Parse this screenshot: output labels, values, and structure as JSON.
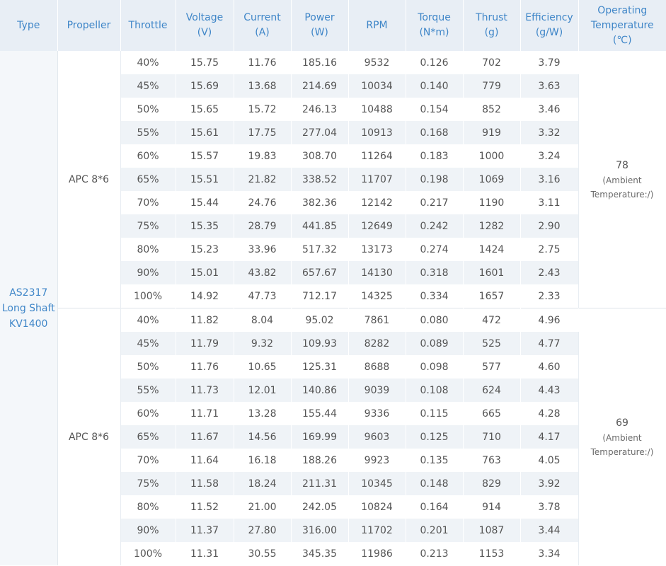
{
  "headers": [
    [
      "Type"
    ],
    [
      "Propeller"
    ],
    [
      "Throttle"
    ],
    [
      "Voltage",
      "(V)"
    ],
    [
      "Current",
      "(A)"
    ],
    [
      "Power",
      "(W)"
    ],
    [
      "RPM"
    ],
    [
      "Torque",
      "(N*m)"
    ],
    [
      "Thrust",
      "(g)"
    ],
    [
      "Efficiency",
      "(g/W)"
    ],
    [
      "Operating",
      "Temperature",
      "(℃)"
    ]
  ],
  "type_lines": [
    "AS2317",
    "Long Shaft",
    "KV1400"
  ],
  "groups": [
    {
      "propeller": "APC 8*6",
      "temperature": "78",
      "temperature_note_lines": [
        "(Ambient",
        "Temperature:/)"
      ],
      "rows": [
        [
          "40%",
          "15.75",
          "11.76",
          "185.16",
          "9532",
          "0.126",
          "702",
          "3.79"
        ],
        [
          "45%",
          "15.69",
          "13.68",
          "214.69",
          "10034",
          "0.140",
          "779",
          "3.63"
        ],
        [
          "50%",
          "15.65",
          "15.72",
          "246.13",
          "10488",
          "0.154",
          "852",
          "3.46"
        ],
        [
          "55%",
          "15.61",
          "17.75",
          "277.04",
          "10913",
          "0.168",
          "919",
          "3.32"
        ],
        [
          "60%",
          "15.57",
          "19.83",
          "308.70",
          "11264",
          "0.183",
          "1000",
          "3.24"
        ],
        [
          "65%",
          "15.51",
          "21.82",
          "338.52",
          "11707",
          "0.198",
          "1069",
          "3.16"
        ],
        [
          "70%",
          "15.44",
          "24.76",
          "382.36",
          "12142",
          "0.217",
          "1190",
          "3.11"
        ],
        [
          "75%",
          "15.35",
          "28.79",
          "441.85",
          "12649",
          "0.242",
          "1282",
          "2.90"
        ],
        [
          "80%",
          "15.23",
          "33.96",
          "517.32",
          "13173",
          "0.274",
          "1424",
          "2.75"
        ],
        [
          "90%",
          "15.01",
          "43.82",
          "657.67",
          "14130",
          "0.318",
          "1601",
          "2.43"
        ],
        [
          "100%",
          "14.92",
          "47.73",
          "712.17",
          "14325",
          "0.334",
          "1657",
          "2.33"
        ]
      ]
    },
    {
      "propeller": "APC 8*6",
      "temperature": "69",
      "temperature_note_lines": [
        "(Ambient",
        "Temperature:/)"
      ],
      "rows": [
        [
          "40%",
          "11.82",
          "8.04",
          "95.02",
          "7861",
          "0.080",
          "472",
          "4.96"
        ],
        [
          "45%",
          "11.79",
          "9.32",
          "109.93",
          "8282",
          "0.089",
          "525",
          "4.77"
        ],
        [
          "50%",
          "11.76",
          "10.65",
          "125.31",
          "8688",
          "0.098",
          "577",
          "4.60"
        ],
        [
          "55%",
          "11.73",
          "12.01",
          "140.86",
          "9039",
          "0.108",
          "624",
          "4.43"
        ],
        [
          "60%",
          "11.71",
          "13.28",
          "155.44",
          "9336",
          "0.115",
          "665",
          "4.28"
        ],
        [
          "65%",
          "11.67",
          "14.56",
          "169.99",
          "9603",
          "0.125",
          "710",
          "4.17"
        ],
        [
          "70%",
          "11.64",
          "16.18",
          "188.26",
          "9923",
          "0.135",
          "763",
          "4.05"
        ],
        [
          "75%",
          "11.58",
          "18.24",
          "211.31",
          "10345",
          "0.148",
          "829",
          "3.92"
        ],
        [
          "80%",
          "11.52",
          "21.00",
          "242.05",
          "10824",
          "0.164",
          "914",
          "3.78"
        ],
        [
          "90%",
          "11.37",
          "27.80",
          "316.00",
          "11702",
          "0.201",
          "1087",
          "3.44"
        ],
        [
          "100%",
          "11.31",
          "30.55",
          "345.35",
          "11986",
          "0.213",
          "1153",
          "3.34"
        ]
      ]
    }
  ]
}
